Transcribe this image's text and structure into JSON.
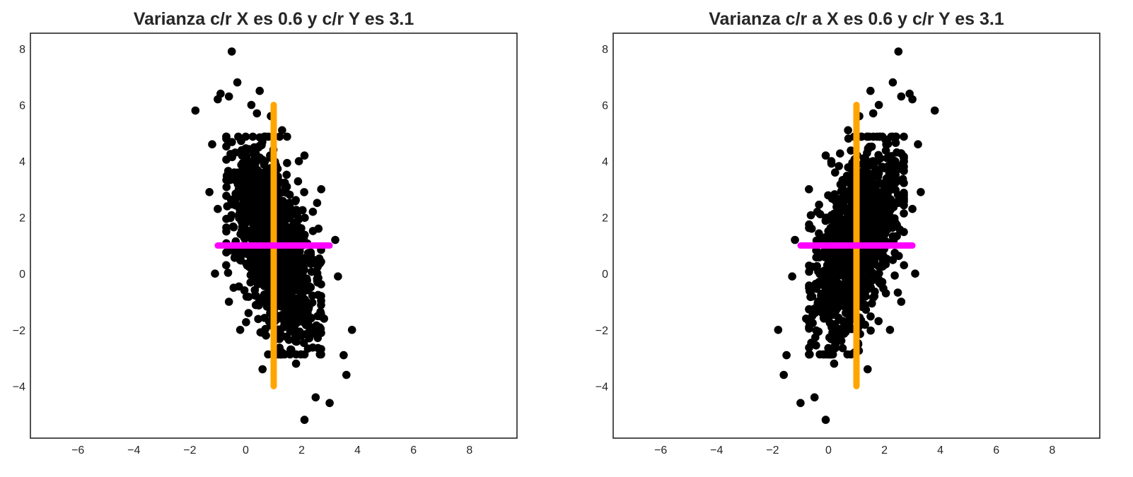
{
  "chart_data": [
    {
      "type": "scatter",
      "title": "Varianza c/r X es 0.6 y c/r Y es 3.1",
      "xlabel": "",
      "ylabel": "",
      "xlim": [
        -7.7,
        9.7
      ],
      "ylim": [
        -5.85,
        8.55
      ],
      "xticks": [
        -6,
        -4,
        -2,
        0,
        2,
        4,
        6,
        8
      ],
      "xtick_labels": [
        "−6",
        "−4",
        "−2",
        "0",
        "2",
        "4",
        "6",
        "8"
      ],
      "yticks": [
        -4,
        -2,
        0,
        2,
        4,
        6,
        8
      ],
      "ytick_labels": [
        "−4",
        "−2",
        "0",
        "2",
        "4",
        "6",
        "8"
      ],
      "grid": false,
      "point_color": "#000000",
      "cloud": {
        "center": [
          1.0,
          1.0
        ],
        "std_x": 0.77,
        "std_y": 1.76,
        "correlation": -0.55,
        "count": 1200
      },
      "points": [
        [
          -0.5,
          7.9
        ],
        [
          -1.8,
          5.8
        ],
        [
          -1.0,
          6.2
        ],
        [
          -0.3,
          6.8
        ],
        [
          0.5,
          6.5
        ],
        [
          -1.2,
          4.6
        ],
        [
          -1.3,
          2.9
        ],
        [
          -1.1,
          0.0
        ],
        [
          -0.6,
          -1.0
        ],
        [
          -0.2,
          -2.0
        ],
        [
          2.1,
          -5.2
        ],
        [
          3.0,
          -4.6
        ],
        [
          3.6,
          -3.6
        ],
        [
          3.8,
          -2.0
        ],
        [
          3.5,
          -2.9
        ],
        [
          3.3,
          -0.1
        ],
        [
          3.2,
          1.2
        ],
        [
          2.7,
          3.0
        ],
        [
          2.1,
          4.2
        ],
        [
          1.3,
          5.1
        ],
        [
          0.9,
          5.6
        ],
        [
          0.4,
          5.7
        ],
        [
          -0.9,
          6.4
        ],
        [
          -0.6,
          6.3
        ],
        [
          2.5,
          -4.4
        ],
        [
          2.8,
          -1.6
        ],
        [
          -0.7,
          0.3
        ],
        [
          -1.0,
          2.3
        ],
        [
          1.8,
          -3.2
        ],
        [
          0.6,
          -3.4
        ],
        [
          2.4,
          2.2
        ],
        [
          2.6,
          1.6
        ],
        [
          0.2,
          6.0
        ],
        [
          1.9,
          4.0
        ]
      ],
      "lines": [
        {
          "orientation": "vertical",
          "x": 1.0,
          "y_from": -4.0,
          "y_to": 6.0,
          "color": "#FFA500"
        },
        {
          "orientation": "horizontal",
          "y": 1.0,
          "x_from": -1.0,
          "x_to": 3.0,
          "color": "#FF00FF"
        }
      ]
    },
    {
      "type": "scatter",
      "title": "Varianza c/r a X es 0.6 y c/r Y es 3.1",
      "xlabel": "",
      "ylabel": "",
      "xlim": [
        -7.7,
        9.7
      ],
      "ylim": [
        -5.85,
        8.55
      ],
      "xticks": [
        -6,
        -4,
        -2,
        0,
        2,
        4,
        6,
        8
      ],
      "xtick_labels": [
        "−6",
        "−4",
        "−2",
        "0",
        "2",
        "4",
        "6",
        "8"
      ],
      "yticks": [
        -4,
        -2,
        0,
        2,
        4,
        6,
        8
      ],
      "ytick_labels": [
        "−4",
        "−2",
        "0",
        "2",
        "4",
        "6",
        "8"
      ],
      "grid": false,
      "point_color": "#000000",
      "cloud": {
        "center": [
          1.0,
          1.0
        ],
        "std_x": 0.77,
        "std_y": 1.76,
        "correlation": 0.55,
        "count": 1200
      },
      "points": [
        [
          2.5,
          7.9
        ],
        [
          3.8,
          5.8
        ],
        [
          3.0,
          6.2
        ],
        [
          2.3,
          6.8
        ],
        [
          1.5,
          6.5
        ],
        [
          3.2,
          4.6
        ],
        [
          3.3,
          2.9
        ],
        [
          3.1,
          0.0
        ],
        [
          2.6,
          -1.0
        ],
        [
          2.2,
          -2.0
        ],
        [
          -0.1,
          -5.2
        ],
        [
          -1.0,
          -4.6
        ],
        [
          -1.6,
          -3.6
        ],
        [
          -1.8,
          -2.0
        ],
        [
          -1.5,
          -2.9
        ],
        [
          -1.3,
          -0.1
        ],
        [
          -1.2,
          1.2
        ],
        [
          -0.7,
          3.0
        ],
        [
          -0.1,
          4.2
        ],
        [
          0.7,
          5.1
        ],
        [
          1.1,
          5.6
        ],
        [
          1.6,
          5.7
        ],
        [
          2.9,
          6.4
        ],
        [
          2.6,
          6.3
        ],
        [
          -0.5,
          -4.4
        ],
        [
          -0.8,
          -1.6
        ],
        [
          2.7,
          0.3
        ],
        [
          3.0,
          2.3
        ],
        [
          0.2,
          -3.2
        ],
        [
          1.4,
          -3.4
        ],
        [
          -0.4,
          2.2
        ],
        [
          -0.6,
          1.6
        ],
        [
          1.8,
          6.0
        ],
        [
          0.1,
          4.0
        ]
      ],
      "lines": [
        {
          "orientation": "vertical",
          "x": 1.0,
          "y_from": -4.0,
          "y_to": 6.0,
          "color": "#FFA500"
        },
        {
          "orientation": "horizontal",
          "y": 1.0,
          "x_from": -1.0,
          "x_to": 3.0,
          "color": "#FF00FF"
        }
      ]
    }
  ]
}
